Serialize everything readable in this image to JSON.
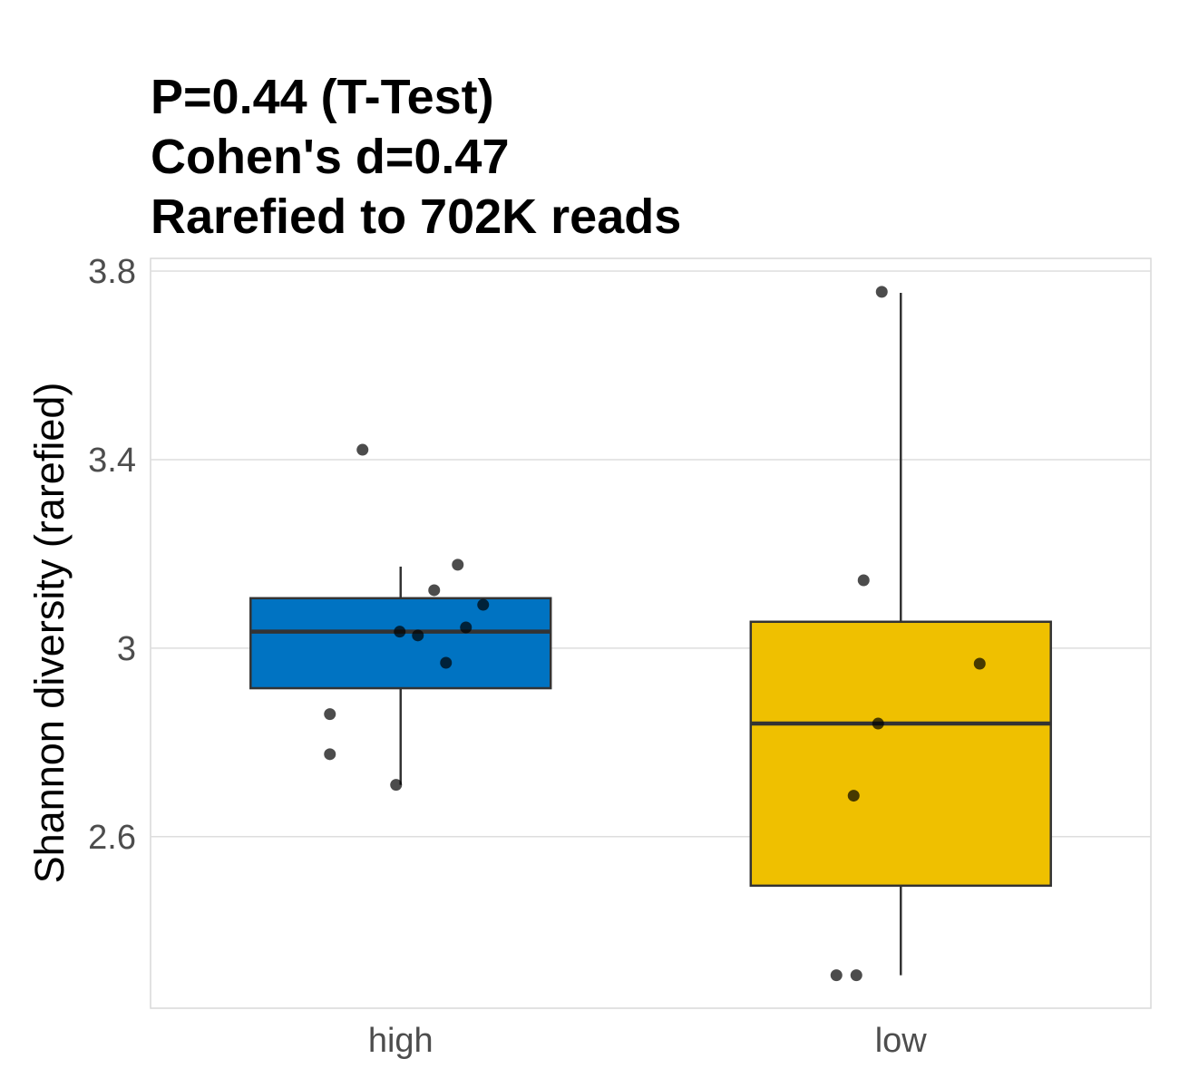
{
  "chart_data": {
    "type": "box",
    "title": [
      "P=0.44 (T-Test)",
      "Cohen's d=0.47",
      "Rarefied to 702K reads"
    ],
    "xlabel": "",
    "ylabel": "Shannon diversity (rarefied)",
    "ylim": [
      2.236,
      3.827
    ],
    "yticks": [
      2.6,
      3.0,
      3.4,
      3.8
    ],
    "ytick_labels": [
      "2.6",
      "3",
      "3.4",
      "3.8"
    ],
    "grid": true,
    "categories": [
      "high",
      "low"
    ],
    "colors": {
      "high": "#0073C2",
      "low": "#EFC000"
    },
    "boxes": [
      {
        "name": "high",
        "whisker_low": 2.71,
        "q1": 2.915,
        "median": 3.035,
        "q3": 3.106,
        "whisker_high": 3.173,
        "points": [
          3.421,
          3.177,
          3.123,
          3.092,
          3.044,
          3.035,
          3.027,
          2.969,
          2.86,
          2.775,
          2.71
        ]
      },
      {
        "name": "low",
        "whisker_low": 2.306,
        "q1": 2.496,
        "median": 2.84,
        "q3": 3.056,
        "whisker_high": 3.754,
        "points": [
          3.756,
          3.144,
          2.967,
          2.84,
          2.687,
          2.306,
          2.306
        ]
      }
    ]
  }
}
